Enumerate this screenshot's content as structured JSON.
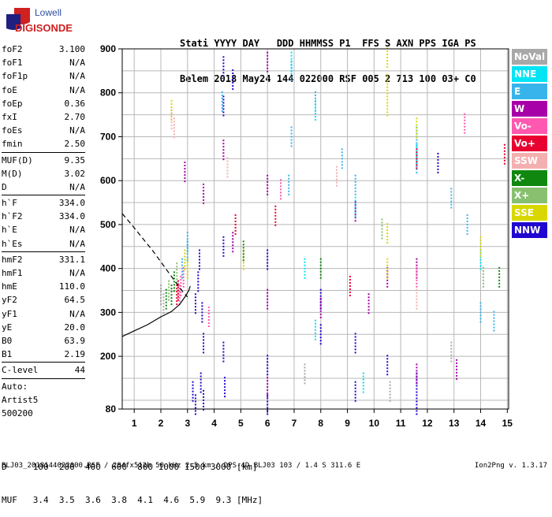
{
  "logo": {
    "line1": "Lowell",
    "line2": "DIGISONDE"
  },
  "header": {
    "row1": "Stati YYYY DAY   DDD HHMMSS P1  FFS S AXN PPS IGA PS",
    "row2": "Belem 2018 May24 144 022000 RSF 005 2 713 100 03+ C0"
  },
  "params": [
    {
      "name": "foF2",
      "value": "3.100"
    },
    {
      "name": "foF1",
      "value": "N/A"
    },
    {
      "name": "foF1p",
      "value": "N/A"
    },
    {
      "name": "foE",
      "value": "N/A"
    },
    {
      "name": "foEp",
      "value": "0.36"
    },
    {
      "name": "fxI",
      "value": "2.70"
    },
    {
      "name": "foEs",
      "value": "N/A"
    },
    {
      "name": "fmin",
      "value": "2.50"
    },
    {
      "sep": true
    },
    {
      "name": "MUF(D)",
      "value": "9.35"
    },
    {
      "name": "M(D)",
      "value": "3.02"
    },
    {
      "name": "D",
      "value": "N/A"
    },
    {
      "sep": true
    },
    {
      "name": "h`F",
      "value": "334.0"
    },
    {
      "name": "h`F2",
      "value": "334.0"
    },
    {
      "name": "h`E",
      "value": "N/A"
    },
    {
      "name": "h`Es",
      "value": "N/A"
    },
    {
      "sep": true
    },
    {
      "name": "hmF2",
      "value": "331.1"
    },
    {
      "name": "hmF1",
      "value": "N/A"
    },
    {
      "name": "hmE",
      "value": "110.0"
    },
    {
      "name": "yF2",
      "value": "64.5"
    },
    {
      "name": "yF1",
      "value": "N/A"
    },
    {
      "name": "yE",
      "value": "20.0"
    },
    {
      "name": "B0",
      "value": "63.9"
    },
    {
      "name": "B1",
      "value": "2.19"
    },
    {
      "sep": true
    },
    {
      "name": "C-level",
      "value": "44"
    },
    {
      "sep": true
    }
  ],
  "auto": [
    "Auto:",
    "Artist5",
    "500200"
  ],
  "legend": [
    {
      "label": "NoVal",
      "color": "#a8a8a8"
    },
    {
      "label": "NNE",
      "color": "#00e4f4"
    },
    {
      "label": "E",
      "color": "#38b4ec"
    },
    {
      "label": "W",
      "color": "#a800a8"
    },
    {
      "label": "Vo-",
      "color": "#ff58b0"
    },
    {
      "label": "Vo+",
      "color": "#e80030"
    },
    {
      "label": "SSW",
      "color": "#f4b0b0"
    },
    {
      "label": "X-",
      "color": "#108810"
    },
    {
      "label": "X+",
      "color": "#88c070"
    },
    {
      "label": "SSE",
      "color": "#d8d800"
    },
    {
      "label": "NNW",
      "color": "#2008d0"
    }
  ],
  "dtable": {
    "row1": "D     100  200  400  600  800 1000 1500 3000 [km]",
    "row2": "MUF   3.4  3.5  3.6  3.8  4.1  4.6  5.9  9.3 [MHz]"
  },
  "footer": "BLJ03_2018144022000.RSF / 284fx512h 50 kHz 2.5 km / DPS-4D BLJ03 103 / 1.4 S 311.6 E",
  "version": "Ion2Png v. 1.3.17",
  "chart_data": {
    "type": "scatter",
    "x_ticks": [
      "1",
      "2",
      "3",
      "4",
      "5",
      "6",
      "7",
      "8",
      "9",
      "10",
      "11",
      "12",
      "13",
      "14",
      "15"
    ],
    "y_ticks": [
      "80",
      "200",
      "300",
      "400",
      "500",
      "600",
      "700",
      "800",
      "900"
    ],
    "xlim": [
      0.55,
      15.05
    ],
    "ylim": [
      80,
      900
    ],
    "grid": true,
    "legend_position": "right",
    "series": [
      {
        "name": "NNW",
        "color": "#2008d0",
        "points": [
          [
            3.3,
            320
          ],
          [
            3.4,
            370
          ],
          [
            3.45,
            420
          ],
          [
            3.55,
            300
          ],
          [
            3.6,
            230
          ],
          [
            3.5,
            140
          ],
          [
            3.6,
            100
          ],
          [
            3.3,
            90
          ],
          [
            4.35,
            860
          ],
          [
            4.35,
            770
          ],
          [
            4.35,
            450
          ],
          [
            4.35,
            210
          ],
          [
            4.4,
            130
          ],
          [
            6.0,
            420
          ],
          [
            6.0,
            180
          ],
          [
            6.0,
            90
          ],
          [
            8.0,
            330
          ],
          [
            8.0,
            250
          ],
          [
            9.3,
            230
          ],
          [
            9.3,
            120
          ],
          [
            10.5,
            180
          ],
          [
            11.6,
            140
          ],
          [
            11.6,
            90
          ],
          [
            12.4,
            640
          ],
          [
            3.2,
            120
          ],
          [
            4.7,
            830
          ]
        ]
      },
      {
        "name": "W",
        "color": "#a800a8",
        "points": [
          [
            4.35,
            670
          ],
          [
            6.0,
            870
          ],
          [
            6.0,
            590
          ],
          [
            6.0,
            330
          ],
          [
            6.0,
            130
          ],
          [
            8.0,
            310
          ],
          [
            9.3,
            530
          ],
          [
            9.8,
            320
          ],
          [
            10.5,
            380
          ],
          [
            11.6,
            400
          ],
          [
            11.6,
            160
          ],
          [
            13.1,
            170
          ],
          [
            2.9,
            620
          ],
          [
            4.7,
            460
          ],
          [
            3.6,
            570
          ]
        ]
      },
      {
        "name": "E",
        "color": "#38b4ec",
        "points": [
          [
            2.9,
            420
          ],
          [
            3.0,
            440
          ],
          [
            3.0,
            460
          ],
          [
            2.8,
            400
          ],
          [
            4.3,
            780
          ],
          [
            6.9,
            850
          ],
          [
            6.9,
            700
          ],
          [
            7.8,
            780
          ],
          [
            8.8,
            650
          ],
          [
            9.3,
            590
          ],
          [
            11.6,
            700
          ],
          [
            11.6,
            640
          ],
          [
            13.5,
            500
          ],
          [
            14.0,
            300
          ],
          [
            14.5,
            280
          ],
          [
            12.9,
            560
          ],
          [
            6.8,
            590
          ]
        ]
      },
      {
        "name": "NNE",
        "color": "#00e4f4",
        "points": [
          [
            6.9,
            870
          ],
          [
            7.8,
            760
          ],
          [
            7.4,
            400
          ],
          [
            9.3,
            540
          ],
          [
            11.6,
            660
          ],
          [
            14.0,
            420
          ],
          [
            7.8,
            260
          ],
          [
            9.6,
            140
          ]
        ]
      },
      {
        "name": "SSE",
        "color": "#d8d800",
        "points": [
          [
            10.5,
            880
          ],
          [
            10.5,
            820
          ],
          [
            10.5,
            770
          ],
          [
            10.5,
            480
          ],
          [
            10.5,
            400
          ],
          [
            11.6,
            720
          ],
          [
            2.9,
            420
          ],
          [
            3.0,
            400
          ],
          [
            5.1,
            420
          ],
          [
            2.4,
            760
          ],
          [
            14.0,
            450
          ]
        ]
      },
      {
        "name": "Vo-",
        "color": "#ff58b0",
        "points": [
          [
            2.75,
            360
          ],
          [
            2.85,
            380
          ],
          [
            2.7,
            340
          ],
          [
            11.6,
            380
          ],
          [
            6.5,
            580
          ],
          [
            13.4,
            730
          ],
          [
            3.8,
            290
          ]
        ]
      },
      {
        "name": "Vo+",
        "color": "#e80030",
        "points": [
          [
            2.6,
            340
          ],
          [
            2.65,
            350
          ],
          [
            11.6,
            650
          ],
          [
            6.3,
            520
          ],
          [
            9.1,
            360
          ],
          [
            4.8,
            500
          ],
          [
            14.9,
            660
          ]
        ]
      },
      {
        "name": "X-",
        "color": "#108810",
        "points": [
          [
            2.4,
            340
          ],
          [
            2.2,
            330
          ],
          [
            2.5,
            370
          ],
          [
            8.0,
            400
          ],
          [
            14.7,
            380
          ],
          [
            5.1,
            440
          ]
        ]
      },
      {
        "name": "X+",
        "color": "#88c070",
        "points": [
          [
            2.3,
            350
          ],
          [
            2.6,
            390
          ],
          [
            10.3,
            490
          ],
          [
            14.1,
            380
          ]
        ]
      },
      {
        "name": "SSW",
        "color": "#f4b0b0",
        "points": [
          [
            2.4,
            740
          ],
          [
            2.5,
            720
          ],
          [
            11.6,
            330
          ],
          [
            4.5,
            630
          ],
          [
            8.6,
            610
          ]
        ]
      },
      {
        "name": "NoVal",
        "color": "#a8a8a8",
        "points": [
          [
            2.0,
            340
          ],
          [
            2.1,
            320
          ],
          [
            10.6,
            120
          ],
          [
            12.9,
            210
          ],
          [
            7.4,
            160
          ]
        ]
      }
    ],
    "profile_solid": [
      [
        0.55,
        245
      ],
      [
        1.0,
        258
      ],
      [
        1.5,
        272
      ],
      [
        2.0,
        290
      ],
      [
        2.4,
        302
      ],
      [
        2.7,
        318
      ],
      [
        2.9,
        335
      ],
      [
        3.05,
        350
      ],
      [
        3.1,
        360
      ]
    ],
    "profile_dashed": [
      [
        0.55,
        525
      ],
      [
        0.9,
        500
      ],
      [
        1.3,
        470
      ],
      [
        1.7,
        440
      ],
      [
        2.0,
        415
      ],
      [
        2.3,
        390
      ],
      [
        2.6,
        365
      ],
      [
        2.85,
        345
      ],
      [
        3.0,
        335
      ]
    ]
  }
}
